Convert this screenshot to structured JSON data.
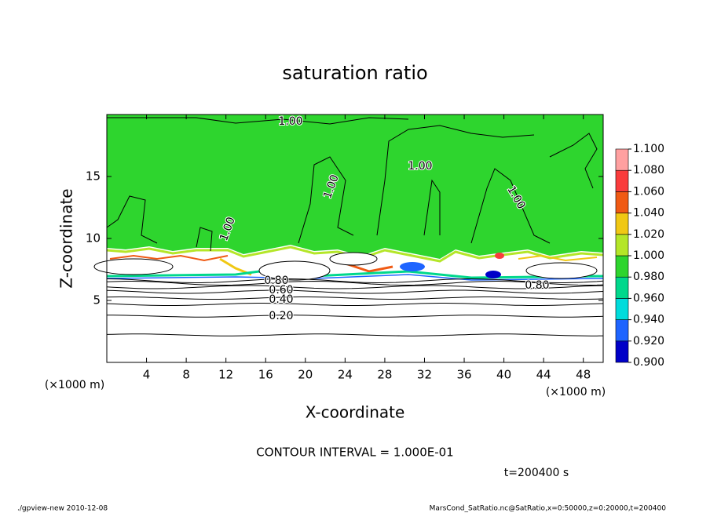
{
  "chart_data": {
    "type": "contour",
    "title": "saturation ratio",
    "xlabel": "X-coordinate",
    "ylabel": "Z-coordinate",
    "xunit": "(×1000 m)",
    "yunit": "(×1000 m)",
    "xlim": [
      0,
      50
    ],
    "ylim": [
      0,
      20
    ],
    "xticks": [
      4,
      8,
      12,
      16,
      20,
      24,
      28,
      32,
      36,
      40,
      44,
      48
    ],
    "yticks": [
      5,
      10,
      15
    ],
    "levels": [
      {
        "value": 0.9,
        "label": "0.900"
      },
      {
        "value": 0.92,
        "label": "0.920"
      },
      {
        "value": 0.94,
        "label": "0.940"
      },
      {
        "value": 0.96,
        "label": "0.960"
      },
      {
        "value": 0.98,
        "label": "0.980"
      },
      {
        "value": 1.0,
        "label": "1.000"
      },
      {
        "value": 1.02,
        "label": "1.020"
      },
      {
        "value": 1.04,
        "label": "1.040"
      },
      {
        "value": 1.06,
        "label": "1.060"
      },
      {
        "value": 1.08,
        "label": "1.080"
      },
      {
        "value": 1.1,
        "label": "1.100"
      }
    ],
    "colors": [
      "#5a00a0",
      "#0000c8",
      "#1e64ff",
      "#00dcdc",
      "#00d88c",
      "#2ed52e",
      "#b4e628",
      "#f0c814",
      "#f05a14",
      "#fa3c3c",
      "#ffa0a0"
    ],
    "contour_labels": [
      "1.00",
      "1.00",
      "1.00",
      "1.00",
      "1.00",
      "0.80",
      "0.60",
      "0.40",
      "0.20",
      "0.80"
    ],
    "contour_interval": "CONTOUR INTERVAL = 1.000E-01",
    "time": "t=200400 s",
    "footer_left": "./gpview-new  2010-12-08",
    "footer_right": "MarsCond_SatRatio.nc@SatRatio,x=0:50000,z=0:20000,t=200400"
  }
}
